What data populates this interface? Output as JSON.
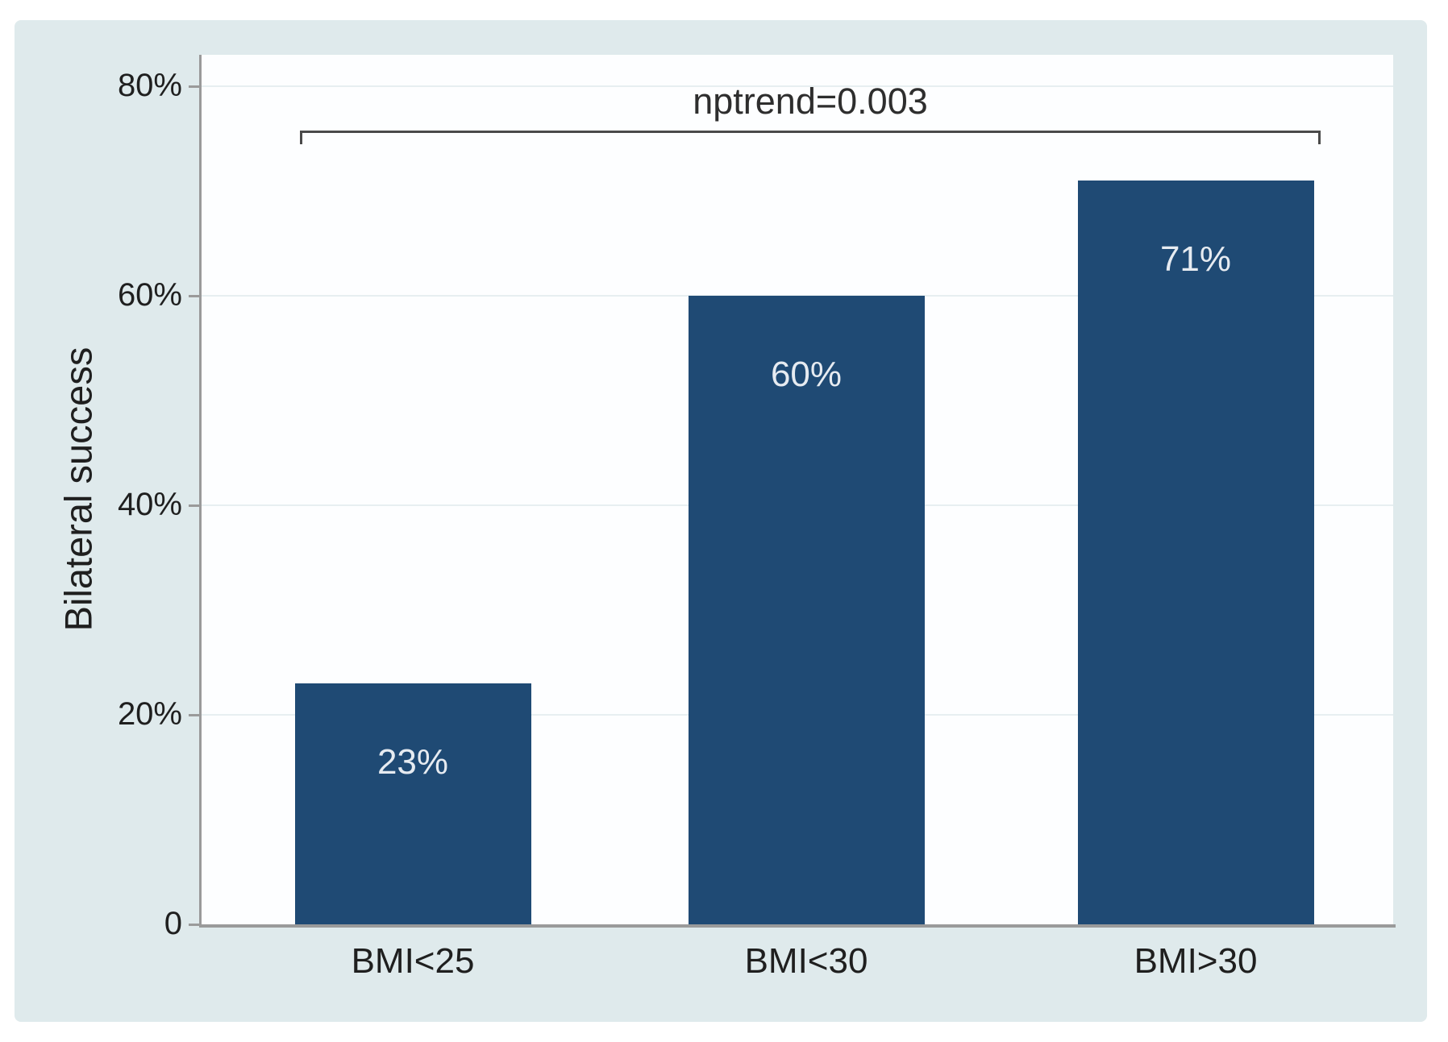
{
  "figure": {
    "colors": {
      "panel_bg": "#dfeaec",
      "plot_bg": "#fdfeff",
      "grid": "#e7eff1",
      "axis": "#9a9a9a",
      "text": "#1f1f1f",
      "bar_fill": "#1f4a74",
      "bar_label": "#e6ebf1",
      "bracket": "#4a4a4a"
    }
  },
  "chart_data": {
    "type": "bar",
    "title": "",
    "xlabel": "",
    "ylabel": "Bilateral success",
    "categories": [
      "BMI<25",
      "BMI<30",
      "BMI>30"
    ],
    "values": [
      23,
      60,
      71
    ],
    "data_labels": [
      "23%",
      "60%",
      "71%"
    ],
    "yticks": [
      {
        "label": "80%",
        "value": 80
      },
      {
        "label": "60%",
        "value": 60
      },
      {
        "label": "40%",
        "value": 40
      },
      {
        "label": "20%",
        "value": 20
      },
      {
        "label": "0",
        "value": 0
      }
    ],
    "ylim": [
      0,
      83
    ],
    "grid": true,
    "legend": "none",
    "annotation": "nptrend=0.003"
  }
}
